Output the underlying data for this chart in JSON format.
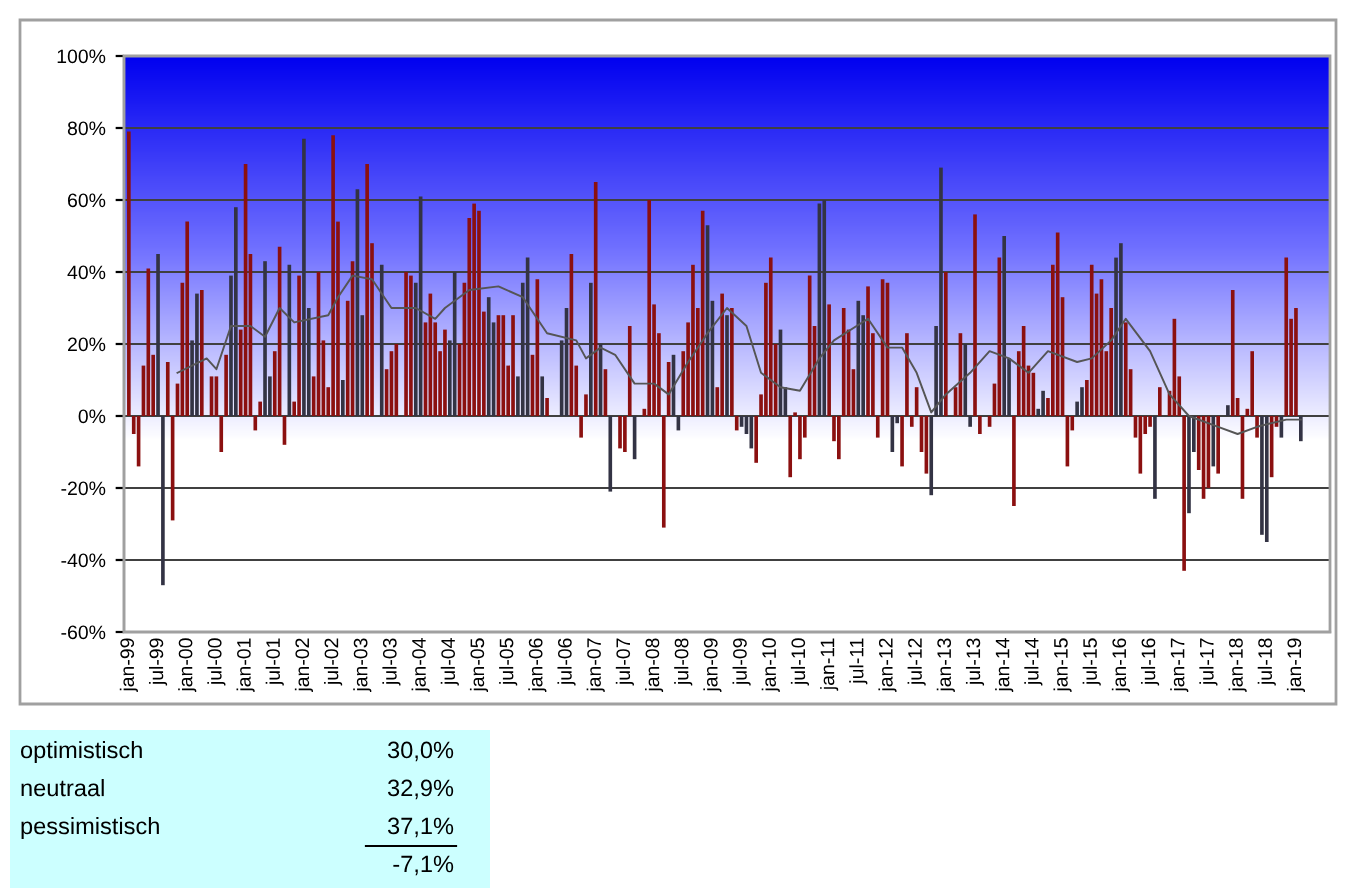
{
  "chart_data": {
    "type": "bar",
    "categories": [
      "jan-99",
      null,
      null,
      null,
      null,
      null,
      "jul-99",
      null,
      null,
      null,
      null,
      null,
      "jan-00",
      null,
      null,
      null,
      null,
      null,
      "jul-00",
      null,
      null,
      null,
      null,
      null,
      "jan-01",
      null,
      null,
      null,
      null,
      null,
      "jul-01",
      null,
      null,
      null,
      null,
      null,
      "jan-02",
      null,
      null,
      null,
      null,
      null,
      "jul-02",
      null,
      null,
      null,
      null,
      null,
      "jan-03",
      null,
      null,
      null,
      null,
      null,
      "jul-03",
      null,
      null,
      null,
      null,
      null,
      "jan-04",
      null,
      null,
      null,
      null,
      null,
      "jul-04",
      null,
      null,
      null,
      null,
      null,
      "jan-05",
      null,
      null,
      null,
      null,
      null,
      "jul-05",
      null,
      null,
      null,
      null,
      null,
      "jan-06",
      null,
      null,
      null,
      null,
      null,
      "jul-06",
      null,
      null,
      null,
      null,
      null,
      "jan-07",
      null,
      null,
      null,
      null,
      null,
      "jul-07",
      null,
      null,
      null,
      null,
      null,
      "jan-08",
      null,
      null,
      null,
      null,
      null,
      "jul-08",
      null,
      null,
      null,
      null,
      null,
      "jan-09",
      null,
      null,
      null,
      null,
      null,
      "jul-09",
      null,
      null,
      null,
      null,
      null,
      "jan-10",
      null,
      null,
      null,
      null,
      null,
      "jul-10",
      null,
      null,
      null,
      null,
      null,
      "jan-11",
      null,
      null,
      null,
      null,
      null,
      "jul-11",
      null,
      null,
      null,
      null,
      null,
      "jan-12",
      null,
      null,
      null,
      null,
      null,
      "jul-12",
      null,
      null,
      null,
      null,
      null,
      "jan-13",
      null,
      null,
      null,
      null,
      null,
      "jul-13",
      null,
      null,
      null,
      null,
      null,
      "jan-14",
      null,
      null,
      null,
      null,
      null,
      "jul-14",
      null,
      null,
      null,
      null,
      null,
      "jan-15",
      null,
      null,
      null,
      null,
      null,
      "jul-15",
      null,
      null,
      null,
      null,
      null,
      "jan-16",
      null,
      null,
      null,
      null,
      null,
      "jul-16",
      null,
      null,
      null,
      null,
      null,
      "jan-17",
      null,
      null,
      null,
      null,
      null,
      "jul-17",
      null,
      null,
      null,
      null,
      null,
      "jan-18",
      null,
      null,
      null,
      null,
      null,
      "jul-18",
      null,
      null,
      null,
      null,
      null,
      "jan-19",
      null
    ],
    "series": [
      {
        "values": [
          79,
          -5,
          -14,
          14,
          41,
          17,
          45,
          -47,
          15,
          -29,
          9,
          37,
          54,
          21,
          34,
          35,
          0,
          11,
          11,
          -10,
          17,
          39,
          58,
          24,
          70,
          45,
          -4,
          4,
          43,
          11,
          18,
          47,
          -8,
          42,
          4,
          39,
          77,
          30,
          11,
          40,
          21,
          8,
          78,
          54,
          10,
          32,
          43,
          63,
          28,
          70,
          48,
          0,
          42,
          13,
          18,
          20,
          0,
          40,
          39,
          37,
          61,
          26,
          34,
          26,
          18,
          24,
          21,
          40,
          20,
          37,
          55,
          59,
          57,
          29,
          33,
          26,
          28,
          28,
          14,
          28,
          11,
          37,
          44,
          17,
          38,
          11,
          5,
          0,
          0,
          21,
          30,
          45,
          14,
          -6,
          6,
          37,
          65,
          20,
          13,
          -21,
          0,
          -9,
          -10,
          25,
          -12,
          0,
          2,
          60,
          31,
          23,
          -31,
          15,
          17,
          -4,
          18,
          26,
          42,
          30,
          57,
          53,
          32,
          8,
          34,
          28,
          30,
          -4,
          -3,
          -5,
          -9,
          -13,
          6,
          37,
          44,
          20,
          24,
          8,
          -17,
          1,
          -12,
          -6,
          39,
          25,
          59,
          60,
          31,
          -7,
          -12,
          30,
          24,
          13,
          32,
          28,
          36,
          23,
          -6,
          38,
          37,
          -10,
          -2,
          -14,
          23,
          -3,
          8,
          -10,
          -16,
          -22,
          25,
          69,
          40,
          0,
          8,
          23,
          20,
          -3,
          56,
          -5,
          0,
          -3,
          9,
          44,
          50,
          16,
          -25,
          18,
          25,
          14,
          12,
          2,
          7,
          5,
          42,
          51,
          33,
          -14,
          -4,
          4,
          8,
          10,
          42,
          34,
          38,
          18,
          30,
          44,
          48,
          26,
          13,
          -6,
          -16,
          -5,
          -3,
          -23,
          8,
          0,
          7,
          27,
          11,
          -43,
          -27,
          -10,
          -15,
          -23,
          -20,
          -14,
          -16,
          0,
          3,
          35,
          5,
          -23,
          2,
          18,
          -6,
          -33,
          -35,
          -17,
          -3,
          -6,
          44,
          27,
          30,
          -7
        ],
        "colors": [
          "#8b1010",
          "#8b1010",
          "#8b1010",
          "#8b1010",
          "#8b1010",
          "#8b1010",
          "#333344",
          "#333344",
          "#8b1010",
          "#8b1010",
          "#8b1010",
          "#8b1010",
          "#8b1010",
          "#333344",
          "#333344",
          "#8b1010",
          "#8b1010",
          "#8b1010",
          "#8b1010",
          "#8b1010",
          "#8b1010",
          "#333344",
          "#333344",
          "#8b1010",
          "#8b1010",
          "#8b1010",
          "#8b1010",
          "#8b1010",
          "#333344",
          "#333344",
          "#8b1010",
          "#8b1010",
          "#8b1010",
          "#333344",
          "#8b1010",
          "#8b1010",
          "#333344",
          "#333344",
          "#8b1010",
          "#8b1010",
          "#8b1010",
          "#8b1010",
          "#8b1010",
          "#8b1010",
          "#333344",
          "#8b1010",
          "#8b1010",
          "#333344",
          "#333344",
          "#8b1010",
          "#8b1010",
          "#8b1010",
          "#333344",
          "#8b1010",
          "#8b1010",
          "#8b1010",
          "#8b1010",
          "#8b1010",
          "#8b1010",
          "#333344",
          "#333344",
          "#8b1010",
          "#8b1010",
          "#8b1010",
          "#8b1010",
          "#8b1010",
          "#333344",
          "#333344",
          "#8b1010",
          "#8b1010",
          "#8b1010",
          "#8b1010",
          "#8b1010",
          "#8b1010",
          "#333344",
          "#333344",
          "#8b1010",
          "#8b1010",
          "#8b1010",
          "#8b1010",
          "#333344",
          "#333344",
          "#333344",
          "#8b1010",
          "#8b1010",
          "#333344",
          "#8b1010",
          "#8b1010",
          "#8b1010",
          "#333344",
          "#333344",
          "#8b1010",
          "#8b1010",
          "#8b1010",
          "#8b1010",
          "#333344",
          "#8b1010",
          "#333344",
          "#8b1010",
          "#333344",
          "#8b1010",
          "#8b1010",
          "#8b1010",
          "#8b1010",
          "#333344",
          "#8b1010",
          "#8b1010",
          "#8b1010",
          "#8b1010",
          "#8b1010",
          "#8b1010",
          "#8b1010",
          "#333344",
          "#333344",
          "#8b1010",
          "#8b1010",
          "#8b1010",
          "#8b1010",
          "#8b1010",
          "#333344",
          "#333344",
          "#8b1010",
          "#8b1010",
          "#333344",
          "#8b1010",
          "#8b1010",
          "#333344",
          "#333344",
          "#333344",
          "#8b1010",
          "#8b1010",
          "#8b1010",
          "#8b1010",
          "#8b1010",
          "#333344",
          "#333344",
          "#8b1010",
          "#8b1010",
          "#8b1010",
          "#8b1010",
          "#8b1010",
          "#8b1010",
          "#333344",
          "#333344",
          "#8b1010",
          "#8b1010",
          "#8b1010",
          "#8b1010",
          "#8b1010",
          "#8b1010",
          "#333344",
          "#333344",
          "#8b1010",
          "#8b1010",
          "#8b1010",
          "#8b1010",
          "#8b1010",
          "#333344",
          "#333344",
          "#8b1010",
          "#8b1010",
          "#8b1010",
          "#8b1010",
          "#8b1010",
          "#8b1010",
          "#333344",
          "#333344",
          "#333344",
          "#8b1010",
          "#8b1010",
          "#8b1010",
          "#8b1010",
          "#333344",
          "#333344",
          "#8b1010",
          "#8b1010",
          "#8b1010",
          "#8b1010",
          "#8b1010",
          "#8b1010",
          "#333344",
          "#333344",
          "#8b1010",
          "#8b1010",
          "#8b1010",
          "#8b1010",
          "#8b1010",
          "#333344",
          "#333344",
          "#8b1010",
          "#8b1010",
          "#8b1010",
          "#8b1010",
          "#8b1010",
          "#8b1010",
          "#333344",
          "#333344",
          "#8b1010",
          "#8b1010",
          "#8b1010",
          "#8b1010",
          "#8b1010",
          "#8b1010",
          "#333344",
          "#333344",
          "#8b1010",
          "#8b1010",
          "#8b1010",
          "#8b1010",
          "#8b1010",
          "#8b1010",
          "#333344",
          "#8b1010",
          "#8b1010",
          "#8b1010",
          "#8b1010",
          "#8b1010",
          "#8b1010",
          "#333344",
          "#333344",
          "#8b1010",
          "#8b1010",
          "#8b1010",
          "#333344",
          "#8b1010",
          "#8b1010",
          "#333344",
          "#8b1010",
          "#8b1010",
          "#8b1010",
          "#8b1010",
          "#8b1010",
          "#8b1010",
          "#333344",
          "#333344",
          "#8b1010",
          "#8b1010",
          "#333344",
          "#8b1010",
          "#8b1010",
          "#8b1010",
          "#333344"
        ]
      },
      {
        "type": "line",
        "color": "#555555",
        "values": [
          null,
          null,
          null,
          null,
          null,
          null,
          null,
          null,
          null,
          null,
          12,
          null,
          null,
          null,
          null,
          null,
          16,
          null,
          13,
          null,
          null,
          25,
          null,
          null,
          null,
          25,
          null,
          null,
          22,
          null,
          null,
          30,
          null,
          null,
          26,
          null,
          null,
          null,
          null,
          null,
          null,
          28,
          null,
          33,
          null,
          null,
          39,
          null,
          null,
          null,
          38,
          null,
          null,
          null,
          30,
          null,
          null,
          null,
          null,
          30,
          null,
          null,
          null,
          27,
          null,
          30,
          null,
          null,
          null,
          null,
          35,
          null,
          null,
          null,
          null,
          null,
          36,
          null,
          null,
          null,
          null,
          33,
          null,
          null,
          null,
          null,
          23,
          null,
          null,
          null,
          null,
          null,
          21,
          null,
          16,
          null,
          null,
          19,
          null,
          null,
          17,
          null,
          null,
          null,
          9,
          null,
          null,
          null,
          9,
          null,
          null,
          6,
          null,
          null,
          null,
          15,
          null,
          null,
          null,
          23,
          null,
          null,
          null,
          30,
          null,
          null,
          null,
          25,
          null,
          null,
          12,
          null,
          null,
          null,
          8,
          null,
          null,
          null,
          7,
          null,
          null,
          null,
          16,
          null,
          null,
          21,
          null,
          null,
          null,
          null,
          null,
          null,
          27,
          null,
          null,
          null,
          19,
          null,
          null,
          19,
          null,
          null,
          12,
          null,
          null,
          1,
          null,
          null,
          6,
          null,
          null,
          null,
          null,
          12,
          null,
          null,
          null,
          18,
          null,
          null,
          null,
          16,
          null,
          null,
          null,
          12,
          null,
          null,
          null,
          18,
          null,
          null,
          null,
          null,
          null,
          15,
          null,
          null,
          16,
          null,
          null,
          null,
          21,
          null,
          null,
          27,
          null,
          null,
          null,
          null,
          18,
          null,
          null,
          null,
          6,
          null,
          null,
          null,
          0,
          null,
          null,
          null,
          null,
          null,
          -3,
          null,
          null,
          null,
          -5,
          null,
          null,
          null,
          -3,
          null,
          null,
          null,
          null,
          null,
          -1,
          null,
          null,
          -1
        ]
      }
    ],
    "ylim": [
      -60,
      100
    ],
    "yticks": [
      {
        "value": -60,
        "label": "-60%"
      },
      {
        "value": -40,
        "label": "-40%"
      },
      {
        "value": -20,
        "label": "-20%"
      },
      {
        "value": 0,
        "label": "0%"
      },
      {
        "value": 20,
        "label": "20%"
      },
      {
        "value": 40,
        "label": "40%"
      },
      {
        "value": 60,
        "label": "60%"
      },
      {
        "value": 80,
        "label": "80%"
      },
      {
        "value": 100,
        "label": "100%"
      }
    ],
    "grid": "y",
    "annotations": [
      "optimistisch",
      "30,0%",
      "neutraal",
      "32,9%",
      "pessimistisch",
      "37,1%",
      "-7,1%"
    ]
  }
}
